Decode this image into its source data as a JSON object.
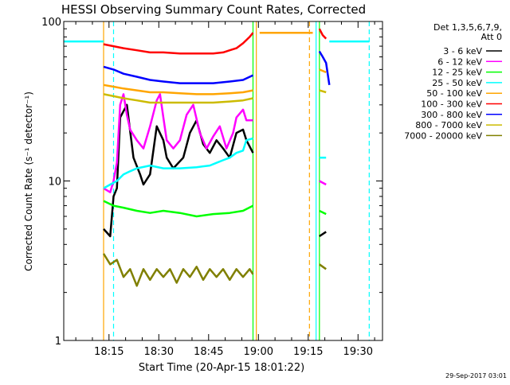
{
  "chart_data": {
    "type": "line",
    "title": "HESSI Observing Summary Count Rates, Corrected",
    "xlabel": "Start Time (20-Apr-15 18:01:22)",
    "ylabel": "Corrected Count Rate (s⁻¹ detector⁻¹)",
    "y_scale": "log",
    "ylim": [
      1,
      100
    ],
    "y_ticks": [
      {
        "value": 1,
        "label": "1"
      },
      {
        "value": 10,
        "label": "10"
      },
      {
        "value": 100,
        "label": "100"
      }
    ],
    "x_units": "minutes after 18:01:22",
    "xlim": [
      0,
      96
    ],
    "x_ticks": [
      {
        "value": 13.63,
        "label": "18:15"
      },
      {
        "value": 28.63,
        "label": "18:30"
      },
      {
        "value": 43.63,
        "label": "18:45"
      },
      {
        "value": 58.63,
        "label": "19:00"
      },
      {
        "value": 73.63,
        "label": "19:15"
      },
      {
        "value": 88.63,
        "label": "19:30"
      }
    ],
    "legend_header": [
      "Det 1,3,5,6,7,9,",
      "Att 0"
    ],
    "legend_position": "right",
    "annotation": "29-Sep-2017 03:01",
    "series": [
      {
        "name": "3 - 6 keV",
        "color": "#000000",
        "segments": [
          [
            [
              12,
              5
            ],
            [
              14,
              4.5
            ],
            [
              15,
              8
            ],
            [
              16,
              9
            ],
            [
              17,
              25
            ],
            [
              19,
              30
            ],
            [
              21,
              14
            ],
            [
              23,
              11
            ],
            [
              24,
              9.5
            ],
            [
              26,
              11
            ],
            [
              28,
              22
            ],
            [
              30,
              18
            ],
            [
              31,
              14
            ],
            [
              33,
              12
            ],
            [
              36,
              14
            ],
            [
              38,
              20
            ],
            [
              40,
              24
            ],
            [
              42,
              17
            ],
            [
              44,
              15
            ],
            [
              46,
              18
            ],
            [
              48,
              16
            ],
            [
              50,
              14
            ],
            [
              52,
              20
            ],
            [
              54,
              21
            ],
            [
              55,
              18
            ],
            [
              57,
              15
            ]
          ],
          [
            [
              77,
              4.5
            ],
            [
              79,
              4.8
            ]
          ]
        ]
      },
      {
        "name": "6 - 12 keV",
        "color": "#ff00ff",
        "segments": [
          [
            [
              12,
              9
            ],
            [
              14,
              8.5
            ],
            [
              15,
              10
            ],
            [
              16,
              13
            ],
            [
              17,
              30
            ],
            [
              18,
              35
            ],
            [
              19,
              26
            ],
            [
              20,
              21
            ],
            [
              22,
              18
            ],
            [
              24,
              16
            ],
            [
              26,
              22
            ],
            [
              28,
              32
            ],
            [
              29,
              35
            ],
            [
              30,
              25
            ],
            [
              31,
              18
            ],
            [
              33,
              16
            ],
            [
              35,
              18
            ],
            [
              37,
              26
            ],
            [
              39,
              30
            ],
            [
              41,
              20
            ],
            [
              43,
              16
            ],
            [
              45,
              19
            ],
            [
              47,
              22
            ],
            [
              49,
              16
            ],
            [
              51,
              20
            ],
            [
              52,
              25
            ],
            [
              54,
              28
            ],
            [
              55,
              24
            ],
            [
              57,
              24
            ]
          ],
          [
            [
              77,
              10
            ],
            [
              79,
              9.5
            ]
          ]
        ]
      },
      {
        "name": "12 - 25 keV",
        "color": "#00ff00",
        "segments": [
          [
            [
              12,
              7.5
            ],
            [
              15,
              7
            ],
            [
              18,
              6.8
            ],
            [
              22,
              6.5
            ],
            [
              26,
              6.3
            ],
            [
              30,
              6.5
            ],
            [
              35,
              6.3
            ],
            [
              40,
              6
            ],
            [
              45,
              6.2
            ],
            [
              50,
              6.3
            ],
            [
              54,
              6.5
            ],
            [
              57,
              7
            ]
          ],
          [
            [
              77,
              6.5
            ],
            [
              79,
              6.2
            ]
          ]
        ]
      },
      {
        "name": "25 - 50 keV",
        "color": "#00ffff",
        "segments": [
          [
            [
              -10,
              75
            ],
            [
              12,
              75
            ]
          ],
          [
            [
              12,
              9
            ],
            [
              14,
              9.5
            ],
            [
              16,
              10
            ],
            [
              18,
              11
            ],
            [
              20,
              11.5
            ],
            [
              22,
              12
            ],
            [
              26,
              12.5
            ],
            [
              30,
              12
            ],
            [
              35,
              12
            ],
            [
              40,
              12.2
            ],
            [
              44,
              12.5
            ],
            [
              46,
              13
            ],
            [
              48,
              13.5
            ],
            [
              50,
              14
            ],
            [
              52,
              15
            ],
            [
              54,
              15.5
            ],
            [
              55,
              18
            ],
            [
              57,
              18.5
            ]
          ],
          [
            [
              77,
              14
            ],
            [
              79,
              14
            ]
          ],
          [
            [
              80,
              75
            ],
            [
              92,
              75
            ]
          ]
        ]
      },
      {
        "name": "50 - 100 keV",
        "color": "#ffa500",
        "segments": [
          [
            [
              12,
              40
            ],
            [
              15,
              39
            ],
            [
              18,
              38
            ],
            [
              22,
              37
            ],
            [
              26,
              36
            ],
            [
              30,
              36
            ],
            [
              35,
              35.5
            ],
            [
              40,
              35
            ],
            [
              45,
              35
            ],
            [
              50,
              35.5
            ],
            [
              54,
              36
            ],
            [
              57,
              37
            ]
          ],
          [
            [
              59,
              85
            ],
            [
              75,
              85
            ]
          ],
          [
            [
              77,
              50
            ],
            [
              79,
              48
            ]
          ]
        ]
      },
      {
        "name": "100 - 300 keV",
        "color": "#ff0000",
        "segments": [
          [
            [
              12,
              72
            ],
            [
              15,
              70
            ],
            [
              18,
              68
            ],
            [
              22,
              66
            ],
            [
              26,
              64
            ],
            [
              30,
              64
            ],
            [
              35,
              63
            ],
            [
              40,
              63
            ],
            [
              45,
              63
            ],
            [
              48,
              64
            ],
            [
              50,
              66
            ],
            [
              52,
              68
            ],
            [
              54,
              73
            ],
            [
              56,
              80
            ],
            [
              57,
              85
            ]
          ],
          [
            [
              77,
              90
            ],
            [
              78,
              82
            ],
            [
              79,
              78
            ]
          ]
        ]
      },
      {
        "name": "300 - 800 keV",
        "color": "#0000ff",
        "segments": [
          [
            [
              12,
              52
            ],
            [
              15,
              50
            ],
            [
              18,
              47
            ],
            [
              22,
              45
            ],
            [
              26,
              43
            ],
            [
              30,
              42
            ],
            [
              35,
              41
            ],
            [
              40,
              41
            ],
            [
              45,
              41
            ],
            [
              50,
              42
            ],
            [
              54,
              43
            ],
            [
              57,
              46
            ]
          ],
          [
            [
              77,
              65
            ],
            [
              78,
              60
            ],
            [
              79,
              55
            ],
            [
              80,
              40
            ]
          ]
        ]
      },
      {
        "name": "800 - 7000 keV",
        "color": "#ccbb00",
        "segments": [
          [
            [
              12,
              35
            ],
            [
              15,
              34
            ],
            [
              18,
              33
            ],
            [
              22,
              32
            ],
            [
              26,
              31
            ],
            [
              30,
              31
            ],
            [
              35,
              31
            ],
            [
              40,
              31
            ],
            [
              45,
              31
            ],
            [
              50,
              31.5
            ],
            [
              54,
              32
            ],
            [
              57,
              33
            ]
          ],
          [
            [
              77,
              37
            ],
            [
              79,
              36
            ]
          ]
        ]
      },
      {
        "name": "7000 - 20000 keV",
        "color": "#808000",
        "segments": [
          [
            [
              12,
              3.5
            ],
            [
              14,
              3
            ],
            [
              16,
              3.2
            ],
            [
              18,
              2.5
            ],
            [
              20,
              2.8
            ],
            [
              22,
              2.2
            ],
            [
              24,
              2.8
            ],
            [
              26,
              2.4
            ],
            [
              28,
              2.8
            ],
            [
              30,
              2.5
            ],
            [
              32,
              2.8
            ],
            [
              34,
              2.3
            ],
            [
              36,
              2.8
            ],
            [
              38,
              2.5
            ],
            [
              40,
              2.9
            ],
            [
              42,
              2.4
            ],
            [
              44,
              2.8
            ],
            [
              46,
              2.5
            ],
            [
              48,
              2.8
            ],
            [
              50,
              2.4
            ],
            [
              52,
              2.8
            ],
            [
              54,
              2.5
            ],
            [
              56,
              2.8
            ],
            [
              57,
              2.6
            ]
          ],
          [
            [
              77,
              3
            ],
            [
              79,
              2.8
            ]
          ]
        ]
      }
    ],
    "vertical_lines": [
      {
        "x": 12,
        "color": "#ffa500",
        "dashed": false
      },
      {
        "x": 15,
        "color": "#00ffff",
        "dashed": true
      },
      {
        "x": 57,
        "color": "#00ff00",
        "dashed": false
      },
      {
        "x": 58,
        "color": "#ffa500",
        "dashed": false
      },
      {
        "x": 74,
        "color": "#ffa500",
        "dashed": true
      },
      {
        "x": 76,
        "color": "#00ffff",
        "dashed": false
      },
      {
        "x": 77,
        "color": "#00ff00",
        "dashed": false
      },
      {
        "x": 92,
        "color": "#00ffff",
        "dashed": true
      }
    ]
  }
}
